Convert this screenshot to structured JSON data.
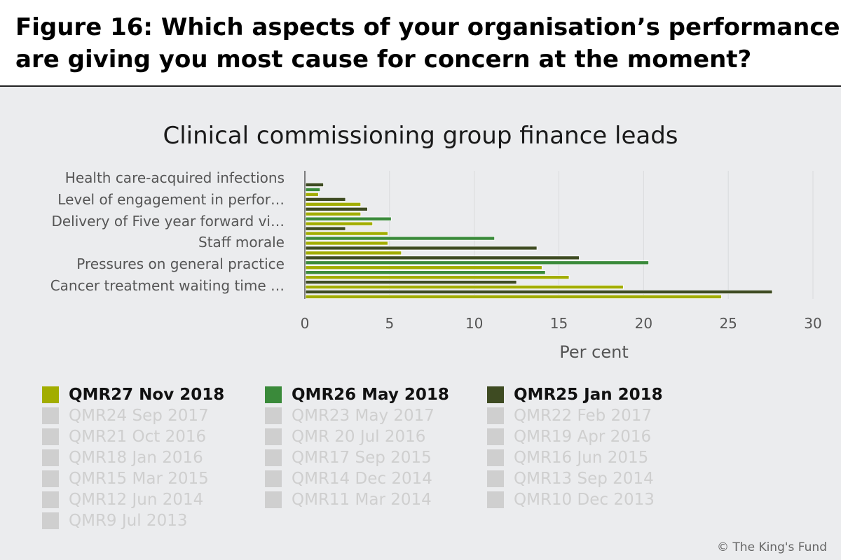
{
  "figure_title_line1": "Figure 16: Which aspects of your organisation’s performance",
  "figure_title_line2": "are giving you most cause for concern at the moment?",
  "credit": "© The King's Fund",
  "colors": {
    "qmr27": "#a2ad00",
    "qmr26": "#3a8a3a",
    "qmr25": "#3e4b22",
    "inactive": "#cfcfcf",
    "background": "#ebecee"
  },
  "legend": {
    "active": [
      {
        "label": "QMR27 Nov 2018",
        "color": "#a2ad00"
      },
      {
        "label": "QMR26 May 2018",
        "color": "#3a8a3a"
      },
      {
        "label": "QMR25 Jan 2018",
        "color": "#3e4b22"
      }
    ],
    "inactive": [
      "QMR24 Sep 2017",
      "QMR23 May 2017",
      "QMR22 Feb 2017",
      "QMR21 Oct 2016",
      "QMR 20 Jul 2016",
      "QMR19 Apr 2016",
      "QMR18 Jan 2016",
      "QMR17 Sep 2015",
      "QMR16 Jun 2015",
      "QMR15 Mar 2015",
      "QMR14 Dec 2014",
      "QMR13 Sep 2014",
      "QMR12 Jun 2014",
      "QMR11 Mar 2014",
      "QMR10 Dec 2013",
      "QMR9 Jul 2013"
    ]
  },
  "chart_data": {
    "type": "bar",
    "orientation": "horizontal",
    "title": "Clinical commissioning group finance leads",
    "xlabel": "Per cent",
    "ylabel": "",
    "xlim": [
      0,
      30
    ],
    "xticks": [
      0,
      5,
      10,
      15,
      20,
      25,
      30
    ],
    "grid": true,
    "legend_position": "bottom",
    "categories": [
      "Health care-acquired infections",
      "Level of engagement in perfor…",
      "Delivery of Five year forward vi…",
      "Staff morale",
      "Pressures on general practice",
      "Cancer treatment waiting time …"
    ],
    "rows": [
      {
        "series": "QMR25 Jan 2018",
        "value": 1.1
      },
      {
        "series": "QMR26 May 2018",
        "value": 0.9
      },
      {
        "series": "QMR27 Nov 2018",
        "value": 0.8
      },
      {
        "series": "QMR25 Jan 2018",
        "value": 2.4
      },
      {
        "series": "QMR27 Nov 2018",
        "value": 3.3
      },
      {
        "series": "QMR25 Jan 2018",
        "value": 3.7
      },
      {
        "series": "QMR27 Nov 2018",
        "value": 3.3
      },
      {
        "series": "QMR26 May 2018",
        "value": 5.1
      },
      {
        "series": "QMR27 Nov 2018",
        "value": 4.0
      },
      {
        "series": "QMR25 Jan 2018",
        "value": 2.4
      },
      {
        "series": "QMR27 Nov 2018",
        "value": 4.9
      },
      {
        "series": "QMR26 May 2018",
        "value": 11.2
      },
      {
        "series": "QMR27 Nov 2018",
        "value": 4.9
      },
      {
        "series": "QMR25 Jan 2018",
        "value": 13.7
      },
      {
        "series": "QMR27 Nov 2018",
        "value": 5.7
      },
      {
        "series": "QMR25 Jan 2018",
        "value": 16.2
      },
      {
        "series": "QMR26 May 2018",
        "value": 20.3
      },
      {
        "series": "QMR27 Nov 2018",
        "value": 14.0
      },
      {
        "series": "QMR26 May 2018",
        "value": 14.2
      },
      {
        "series": "QMR27 Nov 2018",
        "value": 15.6
      },
      {
        "series": "QMR25 Jan 2018",
        "value": 12.5
      },
      {
        "series": "QMR27 Nov 2018",
        "value": 18.8
      },
      {
        "series": "QMR25 Jan 2018",
        "value": 27.6
      },
      {
        "series": "QMR27 Nov 2018",
        "value": 24.6
      }
    ]
  }
}
